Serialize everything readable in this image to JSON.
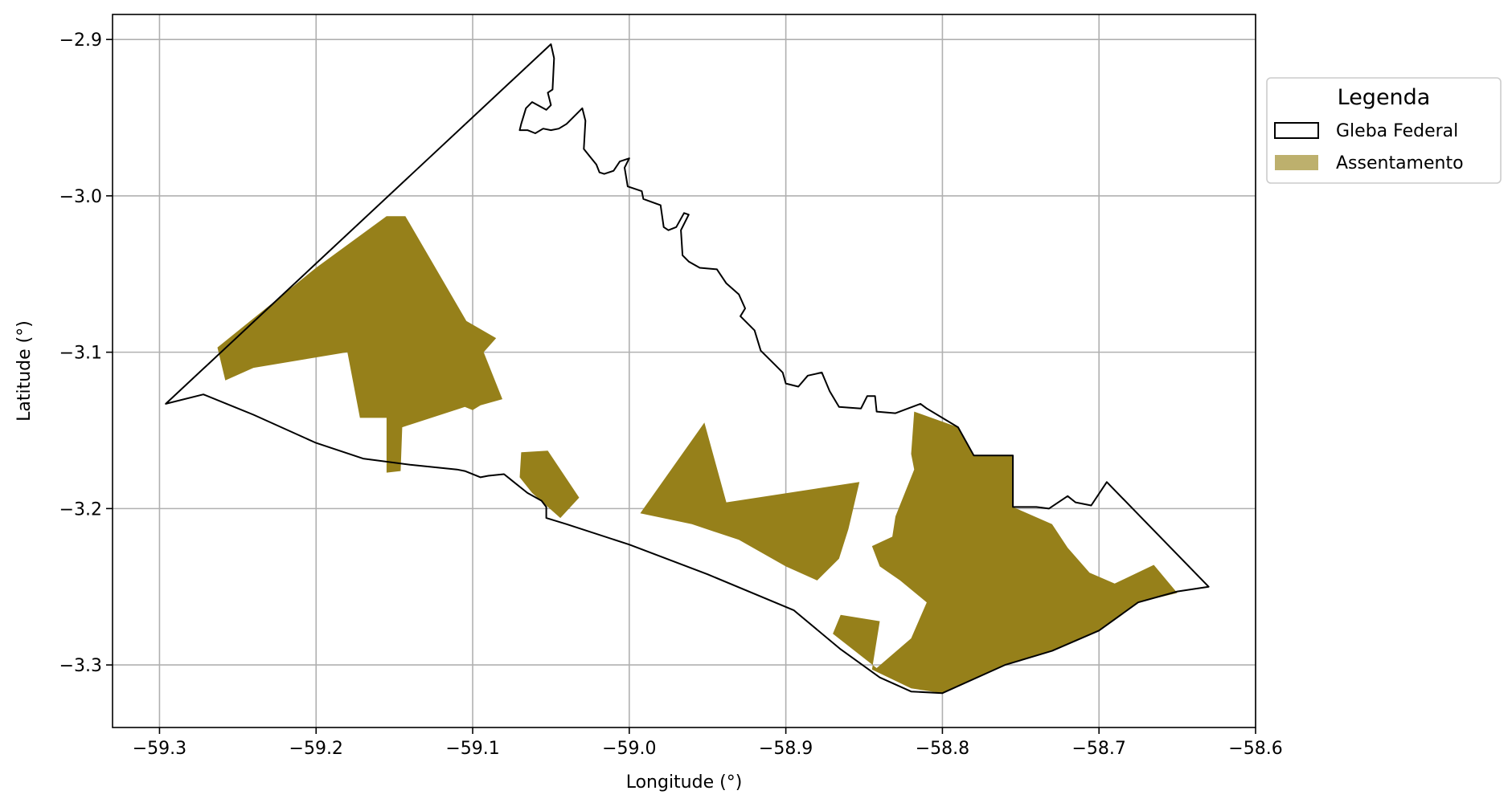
{
  "chart_data": {
    "type": "map",
    "xlabel": "Longitude (°)",
    "ylabel": "Latitude (°)",
    "xlim": [
      -59.33,
      -58.6
    ],
    "ylim": [
      -3.34,
      -2.884
    ],
    "x_ticks": [
      -59.3,
      -59.2,
      -59.1,
      -59.0,
      -58.9,
      -58.8,
      -58.7,
      -58.6
    ],
    "x_tick_labels": [
      "−59.3",
      "−59.2",
      "−59.1",
      "−59.0",
      "−58.9",
      "−58.8",
      "−58.7",
      "−58.6"
    ],
    "y_ticks": [
      -2.9,
      -3.0,
      -3.1,
      -3.2,
      -3.3
    ],
    "y_tick_labels": [
      "−2.9",
      "−3.0",
      "−3.1",
      "−3.2",
      "−3.3"
    ],
    "grid": true,
    "legend": {
      "title": "Legenda",
      "placement": "outside-right-top",
      "entries": [
        {
          "label": "Gleba Federal",
          "style": "outline",
          "edge_color": "#000000",
          "fill": "#ffffff"
        },
        {
          "label": "Assentamento",
          "style": "fill",
          "fill": "#bdb06d"
        }
      ]
    },
    "layers": [
      {
        "name": "Gleba Federal",
        "style": "outline",
        "color": "#000000",
        "polygon": [
          [
            -59.296,
            -3.133
          ],
          [
            -59.05,
            -2.903
          ],
          [
            -59.048,
            -2.912
          ],
          [
            -59.049,
            -2.932
          ],
          [
            -59.052,
            -2.934
          ],
          [
            -59.05,
            -2.942
          ],
          [
            -59.053,
            -2.945
          ],
          [
            -59.062,
            -2.94
          ],
          [
            -59.066,
            -2.944
          ],
          [
            -59.069,
            -2.954
          ],
          [
            -59.07,
            -2.958
          ],
          [
            -59.065,
            -2.958
          ],
          [
            -59.06,
            -2.96
          ],
          [
            -59.055,
            -2.957
          ],
          [
            -59.05,
            -2.958
          ],
          [
            -59.045,
            -2.957
          ],
          [
            -59.04,
            -2.954
          ],
          [
            -59.03,
            -2.944
          ],
          [
            -59.028,
            -2.952
          ],
          [
            -59.029,
            -2.97
          ],
          [
            -59.025,
            -2.975
          ],
          [
            -59.021,
            -2.98
          ],
          [
            -59.019,
            -2.985
          ],
          [
            -59.016,
            -2.986
          ],
          [
            -59.01,
            -2.984
          ],
          [
            -59.006,
            -2.978
          ],
          [
            -59.0,
            -2.976
          ],
          [
            -59.003,
            -2.982
          ],
          [
            -59.001,
            -2.994
          ],
          [
            -58.992,
            -2.997
          ],
          [
            -58.991,
            -3.002
          ],
          [
            -58.98,
            -3.006
          ],
          [
            -58.978,
            -3.02
          ],
          [
            -58.975,
            -3.022
          ],
          [
            -58.97,
            -3.02
          ],
          [
            -58.965,
            -3.011
          ],
          [
            -58.962,
            -3.012
          ],
          [
            -58.967,
            -3.022
          ],
          [
            -58.966,
            -3.038
          ],
          [
            -58.962,
            -3.042
          ],
          [
            -58.955,
            -3.046
          ],
          [
            -58.944,
            -3.047
          ],
          [
            -58.938,
            -3.056
          ],
          [
            -58.93,
            -3.063
          ],
          [
            -58.926,
            -3.072
          ],
          [
            -58.929,
            -3.077
          ],
          [
            -58.92,
            -3.086
          ],
          [
            -58.916,
            -3.099
          ],
          [
            -58.907,
            -3.108
          ],
          [
            -58.902,
            -3.113
          ],
          [
            -58.9,
            -3.12
          ],
          [
            -58.892,
            -3.122
          ],
          [
            -58.886,
            -3.115
          ],
          [
            -58.877,
            -3.113
          ],
          [
            -58.872,
            -3.125
          ],
          [
            -58.866,
            -3.135
          ],
          [
            -58.852,
            -3.136
          ],
          [
            -58.848,
            -3.128
          ],
          [
            -58.843,
            -3.128
          ],
          [
            -58.842,
            -3.138
          ],
          [
            -58.83,
            -3.139
          ],
          [
            -58.822,
            -3.136
          ],
          [
            -58.814,
            -3.133
          ],
          [
            -58.81,
            -3.136
          ],
          [
            -58.79,
            -3.148
          ],
          [
            -58.78,
            -3.166
          ],
          [
            -58.755,
            -3.166
          ],
          [
            -58.755,
            -3.199
          ],
          [
            -58.74,
            -3.199
          ],
          [
            -58.732,
            -3.2
          ],
          [
            -58.72,
            -3.192
          ],
          [
            -58.715,
            -3.196
          ],
          [
            -58.705,
            -3.198
          ],
          [
            -58.695,
            -3.183
          ],
          [
            -58.63,
            -3.25
          ],
          [
            -58.65,
            -3.253
          ],
          [
            -58.675,
            -3.26
          ],
          [
            -58.7,
            -3.278
          ],
          [
            -58.73,
            -3.291
          ],
          [
            -58.76,
            -3.3
          ],
          [
            -58.8,
            -3.318
          ],
          [
            -58.82,
            -3.317
          ],
          [
            -58.84,
            -3.308
          ],
          [
            -58.865,
            -3.29
          ],
          [
            -58.895,
            -3.265
          ],
          [
            -58.95,
            -3.242
          ],
          [
            -59.0,
            -3.223
          ],
          [
            -59.04,
            -3.21
          ],
          [
            -59.053,
            -3.206
          ],
          [
            -59.053,
            -3.199
          ],
          [
            -59.056,
            -3.195
          ],
          [
            -59.065,
            -3.19
          ],
          [
            -59.08,
            -3.178
          ],
          [
            -59.09,
            -3.179
          ],
          [
            -59.095,
            -3.18
          ],
          [
            -59.105,
            -3.176
          ],
          [
            -59.11,
            -3.175
          ],
          [
            -59.14,
            -3.172
          ],
          [
            -59.17,
            -3.168
          ],
          [
            -59.2,
            -3.158
          ],
          [
            -59.24,
            -3.14
          ],
          [
            -59.272,
            -3.127
          ],
          [
            -59.296,
            -3.133
          ]
        ]
      },
      {
        "name": "Assentamento",
        "style": "fill",
        "color": "#96801a",
        "polygons": [
          [
            [
              -59.263,
              -3.097
            ],
            [
              -59.2,
              -3.046
            ],
            [
              -59.155,
              -3.013
            ],
            [
              -59.143,
              -3.013
            ],
            [
              -59.104,
              -3.08
            ],
            [
              -59.085,
              -3.091
            ],
            [
              -59.093,
              -3.1
            ],
            [
              -59.081,
              -3.13
            ],
            [
              -59.095,
              -3.134
            ],
            [
              -59.1,
              -3.137
            ],
            [
              -59.105,
              -3.135
            ],
            [
              -59.145,
              -3.148
            ],
            [
              -59.146,
              -3.176
            ],
            [
              -59.155,
              -3.177
            ],
            [
              -59.155,
              -3.142
            ],
            [
              -59.172,
              -3.142
            ],
            [
              -59.18,
              -3.1
            ],
            [
              -59.24,
              -3.11
            ],
            [
              -59.258,
              -3.118
            ],
            [
              -59.263,
              -3.097
            ]
          ],
          [
            [
              -59.052,
              -3.163
            ],
            [
              -59.032,
              -3.193
            ],
            [
              -59.044,
              -3.206
            ],
            [
              -59.062,
              -3.19
            ],
            [
              -59.07,
              -3.18
            ],
            [
              -59.069,
              -3.164
            ],
            [
              -59.052,
              -3.163
            ]
          ],
          [
            [
              -58.952,
              -3.145
            ],
            [
              -58.993,
              -3.203
            ],
            [
              -58.96,
              -3.21
            ],
            [
              -58.93,
              -3.22
            ],
            [
              -58.9,
              -3.237
            ],
            [
              -58.88,
              -3.246
            ],
            [
              -58.866,
              -3.232
            ],
            [
              -58.86,
              -3.213
            ],
            [
              -58.853,
              -3.183
            ],
            [
              -58.938,
              -3.196
            ],
            [
              -58.952,
              -3.145
            ]
          ],
          [
            [
              -58.818,
              -3.138
            ],
            [
              -58.79,
              -3.148
            ],
            [
              -58.78,
              -3.166
            ],
            [
              -58.755,
              -3.166
            ],
            [
              -58.755,
              -3.199
            ],
            [
              -58.73,
              -3.21
            ],
            [
              -58.72,
              -3.225
            ],
            [
              -58.706,
              -3.241
            ],
            [
              -58.69,
              -3.248
            ],
            [
              -58.665,
              -3.236
            ],
            [
              -58.65,
              -3.254
            ],
            [
              -58.675,
              -3.26
            ],
            [
              -58.7,
              -3.278
            ],
            [
              -58.73,
              -3.291
            ],
            [
              -58.76,
              -3.3
            ],
            [
              -58.8,
              -3.318
            ],
            [
              -58.82,
              -3.315
            ],
            [
              -58.845,
              -3.303
            ],
            [
              -58.84,
              -3.272
            ],
            [
              -58.865,
              -3.268
            ],
            [
              -58.87,
              -3.28
            ],
            [
              -58.842,
              -3.302
            ],
            [
              -58.82,
              -3.283
            ],
            [
              -58.81,
              -3.26
            ],
            [
              -58.827,
              -3.246
            ],
            [
              -58.84,
              -3.237
            ],
            [
              -58.845,
              -3.224
            ],
            [
              -58.832,
              -3.218
            ],
            [
              -58.83,
              -3.205
            ],
            [
              -58.818,
              -3.175
            ],
            [
              -58.82,
              -3.165
            ],
            [
              -58.818,
              -3.138
            ]
          ]
        ]
      }
    ]
  }
}
